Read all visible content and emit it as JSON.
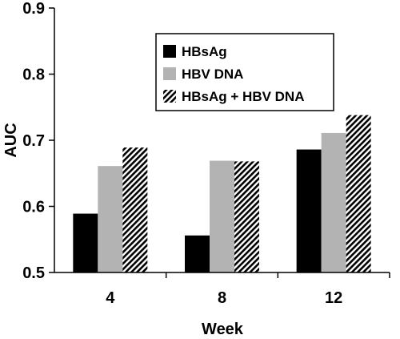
{
  "chart_data": {
    "type": "bar",
    "title": "",
    "xlabel": "Week",
    "ylabel": "AUC",
    "categories": [
      "4",
      "8",
      "12"
    ],
    "ylim": [
      0.5,
      0.9
    ],
    "yticks": [
      "0.5",
      "0.6",
      "0.7",
      "0.8",
      "0.9"
    ],
    "grid": false,
    "legend_position": "top-right",
    "series": [
      {
        "name": "HBsAg",
        "color": "#000000",
        "fill": "solid",
        "values": [
          0.589,
          0.556,
          0.686
        ]
      },
      {
        "name": "HBV DNA",
        "color": "#b3b3b3",
        "fill": "solid",
        "values": [
          0.661,
          0.669,
          0.711
        ]
      },
      {
        "name": "HBsAg + HBV DNA",
        "color": "#000000",
        "fill": "diagonal-hatch",
        "values": [
          0.689,
          0.668,
          0.738
        ]
      }
    ]
  }
}
